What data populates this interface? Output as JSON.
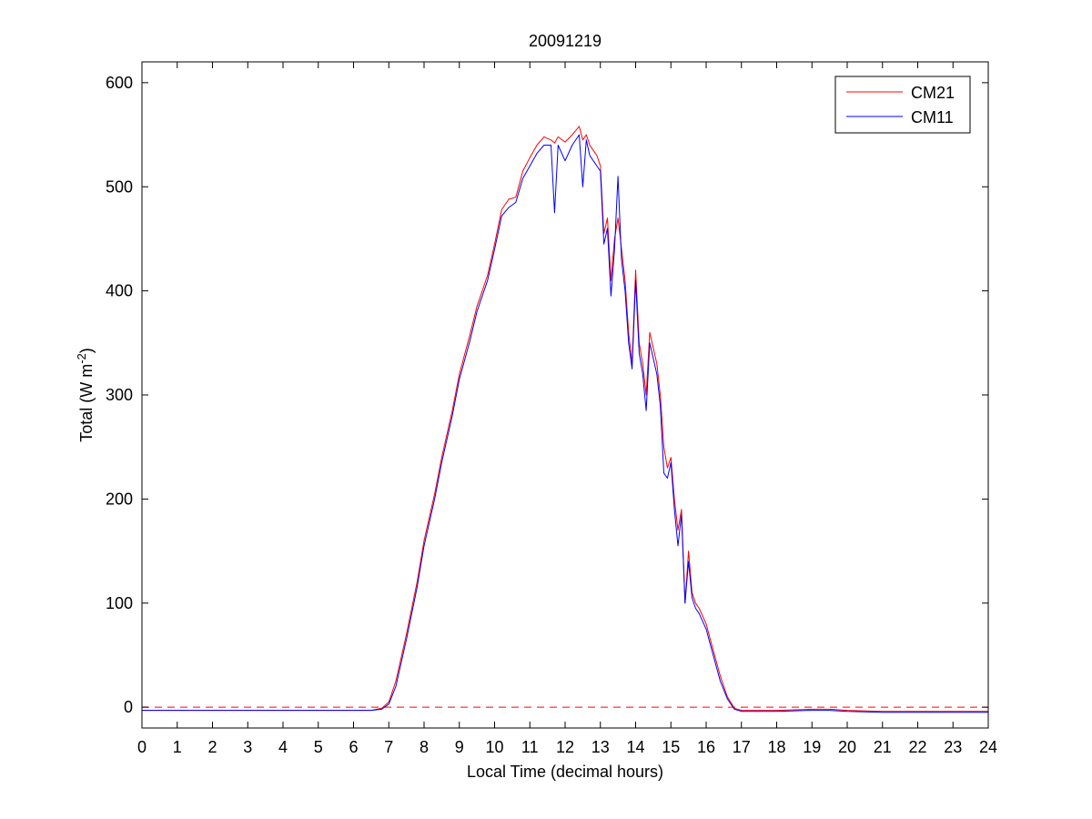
{
  "chart_data": {
    "type": "line",
    "title": "20091219",
    "xlabel": "Local Time (decimal hours)",
    "ylabel": "Total (W m",
    "ylabel_sup": "-2",
    "ylabel_end": ")",
    "xlim": [
      0,
      24
    ],
    "ylim": [
      -20,
      620
    ],
    "x_ticks": [
      0,
      1,
      2,
      3,
      4,
      5,
      6,
      7,
      8,
      9,
      10,
      11,
      12,
      13,
      14,
      15,
      16,
      17,
      18,
      19,
      20,
      21,
      22,
      23,
      24
    ],
    "y_ticks": [
      0,
      100,
      200,
      300,
      400,
      500,
      600
    ],
    "grid": false,
    "legend_position": "top-right",
    "reference_line": {
      "y": 0,
      "color": "#ff0000",
      "style": "dashed"
    },
    "series": [
      {
        "name": "CM21",
        "color": "#ff0000",
        "x": [
          0,
          6.5,
          6.8,
          7.0,
          7.2,
          7.5,
          7.8,
          8.0,
          8.3,
          8.5,
          8.8,
          9.0,
          9.3,
          9.5,
          9.8,
          10.0,
          10.2,
          10.4,
          10.6,
          10.8,
          11.0,
          11.2,
          11.4,
          11.6,
          11.7,
          11.8,
          12.0,
          12.2,
          12.4,
          12.5,
          12.6,
          12.7,
          12.8,
          12.9,
          13.0,
          13.1,
          13.2,
          13.3,
          13.4,
          13.5,
          13.6,
          13.7,
          13.8,
          13.9,
          14.0,
          14.1,
          14.2,
          14.3,
          14.4,
          14.5,
          14.6,
          14.7,
          14.8,
          14.9,
          15.0,
          15.1,
          15.2,
          15.3,
          15.4,
          15.5,
          15.6,
          15.7,
          15.8,
          16.0,
          16.2,
          16.4,
          16.6,
          16.8,
          17.0,
          17.2,
          17.5,
          18.0,
          19.0,
          19.5,
          20.0,
          21.0,
          22.0,
          23.0,
          24.0
        ],
        "y": [
          -3,
          -3,
          -1,
          5,
          25,
          70,
          120,
          160,
          205,
          240,
          285,
          320,
          358,
          385,
          415,
          445,
          478,
          488,
          490,
          515,
          528,
          540,
          548,
          545,
          542,
          548,
          543,
          550,
          558,
          545,
          550,
          540,
          535,
          530,
          520,
          455,
          470,
          410,
          450,
          470,
          440,
          410,
          360,
          330,
          420,
          350,
          330,
          300,
          360,
          345,
          330,
          300,
          250,
          230,
          240,
          200,
          170,
          190,
          100,
          150,
          110,
          100,
          95,
          80,
          55,
          30,
          10,
          -1,
          -3,
          -3,
          -3,
          -3,
          -2,
          -2,
          -3,
          -4,
          -4,
          -4,
          -4
        ]
      },
      {
        "name": "CM11",
        "color": "#0000ff",
        "x": [
          0,
          6.5,
          6.8,
          7.0,
          7.2,
          7.5,
          7.8,
          8.0,
          8.3,
          8.5,
          8.8,
          9.0,
          9.3,
          9.5,
          9.8,
          10.0,
          10.2,
          10.4,
          10.6,
          10.8,
          11.0,
          11.2,
          11.4,
          11.6,
          11.7,
          11.8,
          12.0,
          12.2,
          12.4,
          12.5,
          12.6,
          12.7,
          12.8,
          12.9,
          13.0,
          13.1,
          13.2,
          13.3,
          13.4,
          13.5,
          13.6,
          13.7,
          13.8,
          13.9,
          14.0,
          14.1,
          14.2,
          14.3,
          14.4,
          14.5,
          14.6,
          14.7,
          14.8,
          14.9,
          15.0,
          15.1,
          15.2,
          15.3,
          15.4,
          15.5,
          15.6,
          15.7,
          15.8,
          16.0,
          16.2,
          16.4,
          16.6,
          16.8,
          17.0,
          17.2,
          17.5,
          18.0,
          19.0,
          19.5,
          20.0,
          21.0,
          22.0,
          23.0,
          24.0
        ],
        "y": [
          -3,
          -3,
          -2,
          3,
          20,
          65,
          115,
          155,
          200,
          235,
          280,
          315,
          352,
          380,
          410,
          440,
          472,
          480,
          485,
          508,
          520,
          532,
          540,
          540,
          475,
          540,
          525,
          540,
          550,
          500,
          545,
          530,
          525,
          520,
          515,
          445,
          460,
          395,
          440,
          510,
          430,
          400,
          350,
          325,
          410,
          340,
          320,
          285,
          350,
          335,
          320,
          290,
          225,
          220,
          235,
          190,
          155,
          185,
          100,
          140,
          105,
          95,
          90,
          75,
          50,
          25,
          8,
          -2,
          -4,
          -4,
          -4,
          -4,
          -3,
          -3,
          -4,
          -5,
          -5,
          -5,
          -5
        ]
      }
    ]
  }
}
